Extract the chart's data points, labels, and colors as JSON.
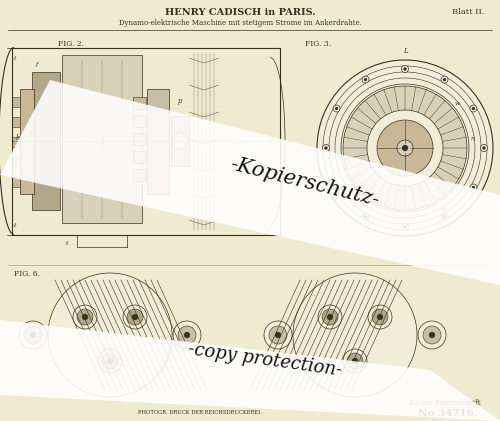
{
  "bg_color": "#f0ebd0",
  "paper_color": "#f2edd8",
  "title_main": "HENRY CADISCH in PARIS.",
  "title_sub": "Dynamo-elektrische Maschine mit stetigem Strome im Ankerdrahte.",
  "top_right": "Blatt II.",
  "bottom_left_small": "PHOTOGR. DRUCK DER REICHSDRUCKEREI.",
  "bottom_right_label": "Zu der Patentschrift",
  "patent_number": "No 34716.",
  "fig2_label": "FIG. 2.",
  "fig3_label": "FIG. 3.",
  "fig6_label": "FIG. 6.",
  "watermark1": "-Kopierschutz-",
  "watermark2": "-copy protection-",
  "line_color": "#3a3020",
  "dark_line": "#2a2010",
  "gray_fill": "#b0a888",
  "gray_fill2": "#c8bea8",
  "light_gray": "#d8d0b8",
  "mid_brown": "#c8b898",
  "stripe_color": "#ffffff",
  "wm_text_color": "#000000"
}
